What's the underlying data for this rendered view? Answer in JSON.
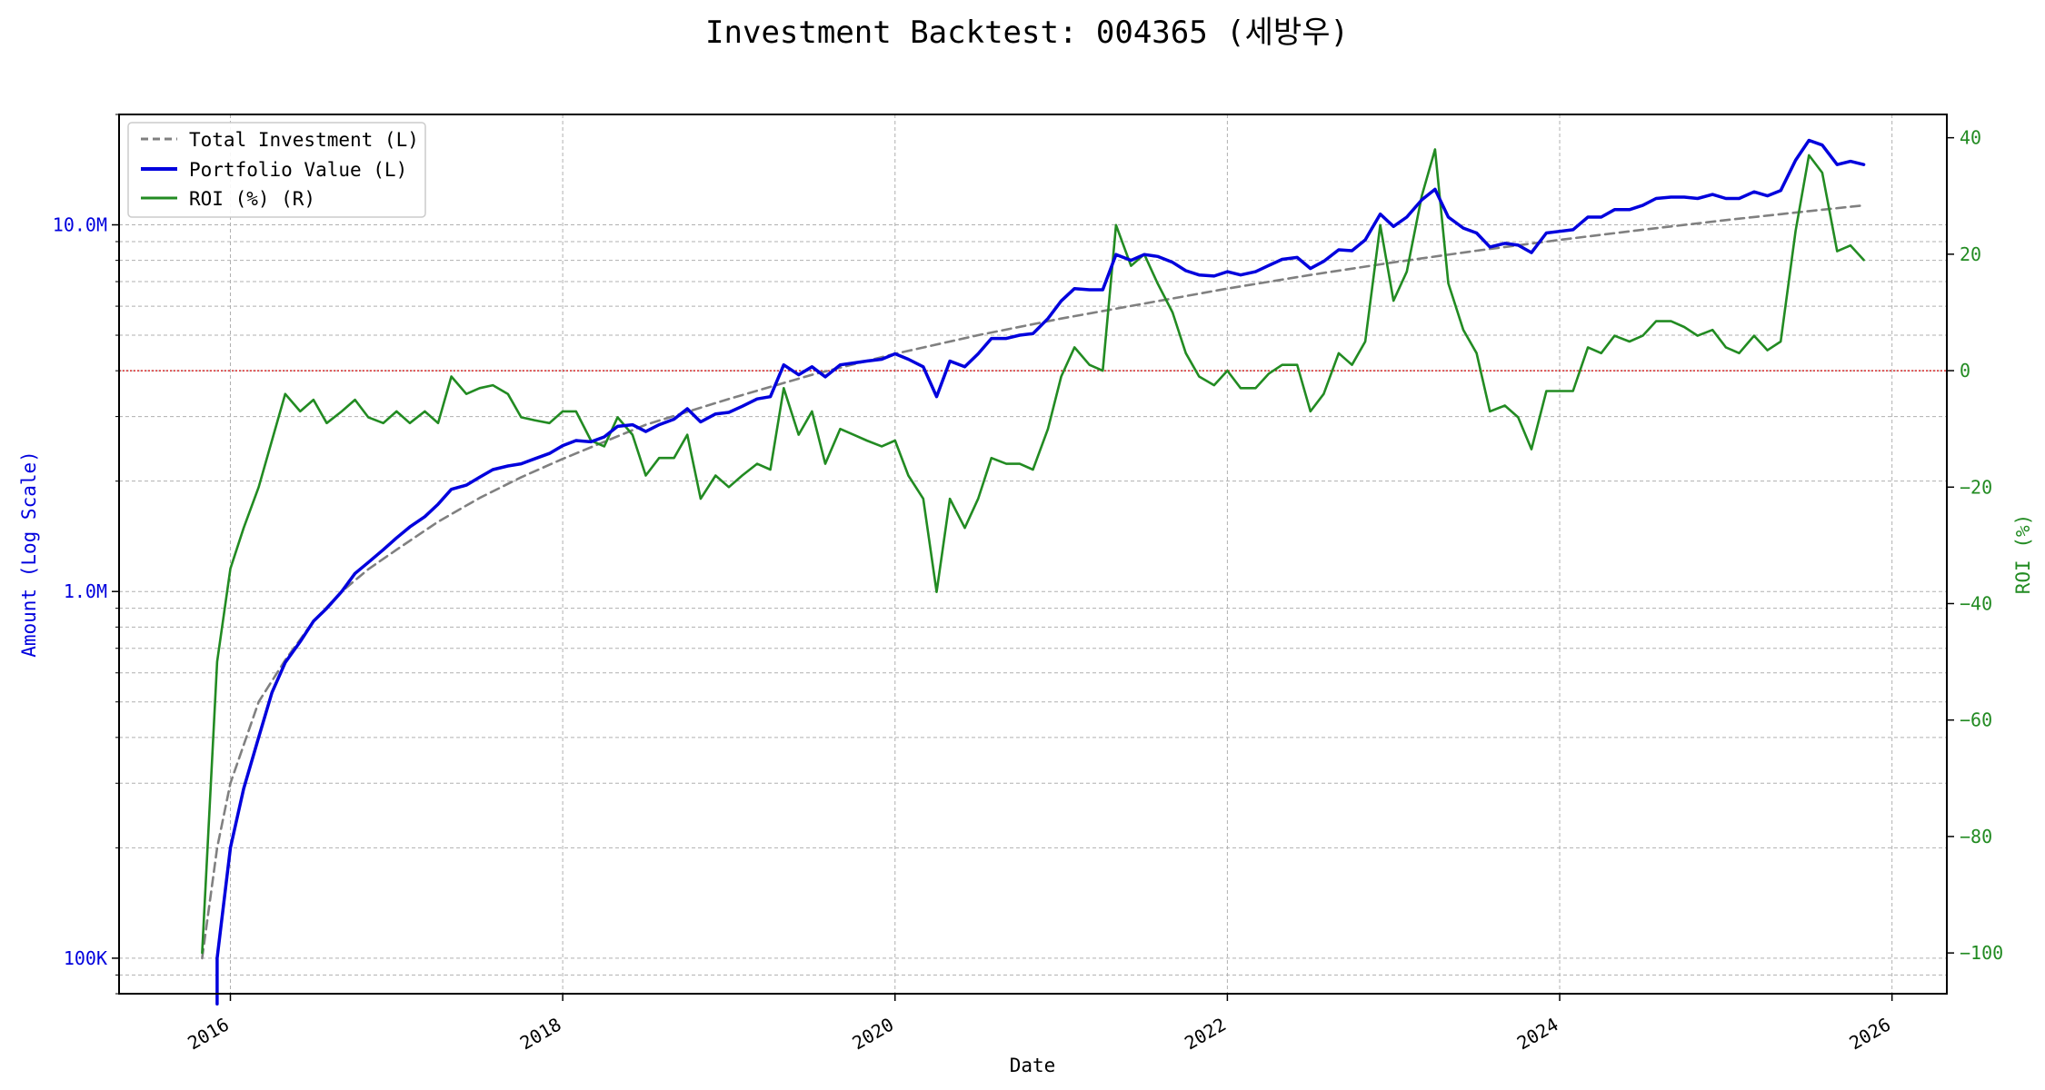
{
  "chart_data": {
    "type": "line",
    "title": "Investment Backtest: 004365 (세방우)",
    "xlabel": "Date",
    "ylabel_left": "Amount (Log Scale)",
    "ylabel_right": "ROI (%)",
    "x_ticks": [
      "2016",
      "2018",
      "2020",
      "2022",
      "2024",
      "2026"
    ],
    "y_left_ticks": [
      {
        "value": 100000,
        "label": "100K"
      },
      {
        "value": 1000000,
        "label": "1.0M"
      },
      {
        "value": 10000000,
        "label": "10.0M"
      }
    ],
    "y_right_ticks": [
      -100,
      -80,
      -60,
      -40,
      -20,
      0,
      20,
      40
    ],
    "y_left_scale": "log",
    "y_left_range": [
      80000,
      20000000
    ],
    "y_right_range": [
      -107,
      44
    ],
    "x_range": [
      2015.33,
      2026.33
    ],
    "grid": true,
    "zero_line": {
      "axis": "right",
      "value": 0,
      "color": "#d62728"
    },
    "legend_position": "top-left",
    "series": [
      {
        "name": "Total Investment (L)",
        "axis": "left",
        "color": "#808080",
        "style": "dashed",
        "points": [
          [
            2015.83,
            100000
          ],
          [
            2015.92,
            200000
          ],
          [
            2016.0,
            300000
          ],
          [
            2016.17,
            500000
          ],
          [
            2016.33,
            650000
          ],
          [
            2016.5,
            830000
          ],
          [
            2016.67,
            1000000
          ],
          [
            2016.83,
            1150000
          ],
          [
            2017.0,
            1300000
          ],
          [
            2017.25,
            1550000
          ],
          [
            2017.5,
            1800000
          ],
          [
            2017.75,
            2050000
          ],
          [
            2018.0,
            2300000
          ],
          [
            2018.5,
            2850000
          ],
          [
            2019.0,
            3350000
          ],
          [
            2019.5,
            3900000
          ],
          [
            2020.0,
            4450000
          ],
          [
            2020.5,
            5000000
          ],
          [
            2021.0,
            5550000
          ],
          [
            2021.5,
            6100000
          ],
          [
            2022.0,
            6700000
          ],
          [
            2022.5,
            7300000
          ],
          [
            2023.0,
            7900000
          ],
          [
            2023.5,
            8500000
          ],
          [
            2024.0,
            9100000
          ],
          [
            2024.5,
            9700000
          ],
          [
            2025.0,
            10300000
          ],
          [
            2025.5,
            10900000
          ],
          [
            2025.83,
            11300000
          ]
        ]
      },
      {
        "name": "Portfolio Value (L)",
        "axis": "left",
        "color": "#0000dd",
        "style": "solid",
        "points": [
          [
            2015.92,
            75000
          ],
          [
            2015.92,
            100000
          ],
          [
            2016.0,
            200000
          ],
          [
            2016.08,
            290000
          ],
          [
            2016.17,
            400000
          ],
          [
            2016.25,
            530000
          ],
          [
            2016.33,
            640000
          ],
          [
            2016.42,
            730000
          ],
          [
            2016.5,
            830000
          ],
          [
            2016.58,
            900000
          ],
          [
            2016.67,
            1000000
          ],
          [
            2016.75,
            1120000
          ],
          [
            2016.83,
            1200000
          ],
          [
            2016.92,
            1300000
          ],
          [
            2017.0,
            1400000
          ],
          [
            2017.08,
            1500000
          ],
          [
            2017.17,
            1600000
          ],
          [
            2017.25,
            1730000
          ],
          [
            2017.33,
            1900000
          ],
          [
            2017.42,
            1950000
          ],
          [
            2017.5,
            2050000
          ],
          [
            2017.58,
            2150000
          ],
          [
            2017.67,
            2200000
          ],
          [
            2017.75,
            2230000
          ],
          [
            2017.83,
            2300000
          ],
          [
            2017.92,
            2380000
          ],
          [
            2018.0,
            2500000
          ],
          [
            2018.08,
            2580000
          ],
          [
            2018.17,
            2560000
          ],
          [
            2018.25,
            2640000
          ],
          [
            2018.33,
            2820000
          ],
          [
            2018.42,
            2850000
          ],
          [
            2018.5,
            2730000
          ],
          [
            2018.58,
            2850000
          ],
          [
            2018.67,
            2950000
          ],
          [
            2018.75,
            3150000
          ],
          [
            2018.83,
            2900000
          ],
          [
            2018.92,
            3050000
          ],
          [
            2019.0,
            3080000
          ],
          [
            2019.08,
            3200000
          ],
          [
            2019.17,
            3350000
          ],
          [
            2019.25,
            3400000
          ],
          [
            2019.33,
            4150000
          ],
          [
            2019.42,
            3900000
          ],
          [
            2019.5,
            4100000
          ],
          [
            2019.58,
            3850000
          ],
          [
            2019.67,
            4150000
          ],
          [
            2019.75,
            4200000
          ],
          [
            2019.83,
            4250000
          ],
          [
            2019.92,
            4300000
          ],
          [
            2020.0,
            4450000
          ],
          [
            2020.08,
            4300000
          ],
          [
            2020.17,
            4100000
          ],
          [
            2020.25,
            3400000
          ],
          [
            2020.33,
            4250000
          ],
          [
            2020.42,
            4100000
          ],
          [
            2020.5,
            4450000
          ],
          [
            2020.58,
            4900000
          ],
          [
            2020.67,
            4900000
          ],
          [
            2020.75,
            5000000
          ],
          [
            2020.83,
            5050000
          ],
          [
            2020.92,
            5550000
          ],
          [
            2021.0,
            6200000
          ],
          [
            2021.08,
            6700000
          ],
          [
            2021.17,
            6650000
          ],
          [
            2021.25,
            6650000
          ],
          [
            2021.33,
            8300000
          ],
          [
            2021.42,
            8000000
          ],
          [
            2021.5,
            8300000
          ],
          [
            2021.58,
            8200000
          ],
          [
            2021.67,
            7900000
          ],
          [
            2021.75,
            7500000
          ],
          [
            2021.83,
            7300000
          ],
          [
            2021.92,
            7250000
          ],
          [
            2022.0,
            7450000
          ],
          [
            2022.08,
            7300000
          ],
          [
            2022.17,
            7450000
          ],
          [
            2022.25,
            7750000
          ],
          [
            2022.33,
            8050000
          ],
          [
            2022.42,
            8150000
          ],
          [
            2022.5,
            7600000
          ],
          [
            2022.58,
            7950000
          ],
          [
            2022.67,
            8550000
          ],
          [
            2022.75,
            8500000
          ],
          [
            2022.83,
            9100000
          ],
          [
            2022.92,
            10700000
          ],
          [
            2023.0,
            9900000
          ],
          [
            2023.08,
            10500000
          ],
          [
            2023.17,
            11700000
          ],
          [
            2023.25,
            12500000
          ],
          [
            2023.33,
            10500000
          ],
          [
            2023.42,
            9800000
          ],
          [
            2023.5,
            9500000
          ],
          [
            2023.58,
            8700000
          ],
          [
            2023.67,
            8900000
          ],
          [
            2023.75,
            8800000
          ],
          [
            2023.83,
            8400000
          ],
          [
            2023.92,
            9500000
          ],
          [
            2024.0,
            9600000
          ],
          [
            2024.08,
            9700000
          ],
          [
            2024.17,
            10500000
          ],
          [
            2024.25,
            10500000
          ],
          [
            2024.33,
            11000000
          ],
          [
            2024.42,
            11000000
          ],
          [
            2024.5,
            11300000
          ],
          [
            2024.58,
            11800000
          ],
          [
            2024.67,
            11900000
          ],
          [
            2024.75,
            11900000
          ],
          [
            2024.83,
            11800000
          ],
          [
            2024.92,
            12100000
          ],
          [
            2025.0,
            11800000
          ],
          [
            2025.08,
            11800000
          ],
          [
            2025.17,
            12300000
          ],
          [
            2025.25,
            12000000
          ],
          [
            2025.33,
            12400000
          ],
          [
            2025.42,
            15000000
          ],
          [
            2025.5,
            17000000
          ],
          [
            2025.58,
            16500000
          ],
          [
            2025.67,
            14600000
          ],
          [
            2025.75,
            14900000
          ],
          [
            2025.83,
            14600000
          ]
        ]
      },
      {
        "name": "ROI (%) (R)",
        "axis": "right",
        "color": "#228b22",
        "style": "solid",
        "points": [
          [
            2015.83,
            -100
          ],
          [
            2015.92,
            -50
          ],
          [
            2016.0,
            -34
          ],
          [
            2016.08,
            -27
          ],
          [
            2016.17,
            -20
          ],
          [
            2016.25,
            -12
          ],
          [
            2016.33,
            -4
          ],
          [
            2016.42,
            -7
          ],
          [
            2016.5,
            -5
          ],
          [
            2016.58,
            -9
          ],
          [
            2016.67,
            -7
          ],
          [
            2016.75,
            -5
          ],
          [
            2016.83,
            -8
          ],
          [
            2016.92,
            -9
          ],
          [
            2017.0,
            -7
          ],
          [
            2017.08,
            -9
          ],
          [
            2017.17,
            -7
          ],
          [
            2017.25,
            -9
          ],
          [
            2017.33,
            -1
          ],
          [
            2017.42,
            -4
          ],
          [
            2017.5,
            -3
          ],
          [
            2017.58,
            -2.5
          ],
          [
            2017.67,
            -4
          ],
          [
            2017.75,
            -8
          ],
          [
            2017.83,
            -8.5
          ],
          [
            2017.92,
            -9
          ],
          [
            2018.0,
            -7
          ],
          [
            2018.08,
            -7
          ],
          [
            2018.17,
            -12
          ],
          [
            2018.25,
            -13
          ],
          [
            2018.33,
            -8
          ],
          [
            2018.42,
            -11
          ],
          [
            2018.5,
            -18
          ],
          [
            2018.58,
            -15
          ],
          [
            2018.67,
            -15
          ],
          [
            2018.75,
            -11
          ],
          [
            2018.83,
            -22
          ],
          [
            2018.92,
            -18
          ],
          [
            2019.0,
            -20
          ],
          [
            2019.08,
            -18
          ],
          [
            2019.17,
            -16
          ],
          [
            2019.25,
            -17
          ],
          [
            2019.33,
            -3
          ],
          [
            2019.42,
            -11
          ],
          [
            2019.5,
            -7
          ],
          [
            2019.58,
            -16
          ],
          [
            2019.67,
            -10
          ],
          [
            2019.75,
            -11
          ],
          [
            2019.83,
            -12
          ],
          [
            2019.92,
            -13
          ],
          [
            2020.0,
            -12
          ],
          [
            2020.08,
            -18
          ],
          [
            2020.17,
            -22
          ],
          [
            2020.25,
            -38
          ],
          [
            2020.33,
            -22
          ],
          [
            2020.42,
            -27
          ],
          [
            2020.5,
            -22
          ],
          [
            2020.58,
            -15
          ],
          [
            2020.67,
            -16
          ],
          [
            2020.75,
            -16
          ],
          [
            2020.83,
            -17
          ],
          [
            2020.92,
            -10
          ],
          [
            2021.0,
            -1
          ],
          [
            2021.08,
            4
          ],
          [
            2021.17,
            1
          ],
          [
            2021.25,
            0
          ],
          [
            2021.33,
            25
          ],
          [
            2021.42,
            18
          ],
          [
            2021.5,
            20
          ],
          [
            2021.58,
            15
          ],
          [
            2021.67,
            10
          ],
          [
            2021.75,
            3
          ],
          [
            2021.83,
            -1
          ],
          [
            2021.92,
            -2.5
          ],
          [
            2022.0,
            0
          ],
          [
            2022.08,
            -3
          ],
          [
            2022.17,
            -3
          ],
          [
            2022.25,
            -0.5
          ],
          [
            2022.33,
            1
          ],
          [
            2022.42,
            1
          ],
          [
            2022.5,
            -7
          ],
          [
            2022.58,
            -4
          ],
          [
            2022.67,
            3
          ],
          [
            2022.75,
            1
          ],
          [
            2022.83,
            5
          ],
          [
            2022.92,
            25
          ],
          [
            2023.0,
            12
          ],
          [
            2023.08,
            17
          ],
          [
            2023.17,
            30
          ],
          [
            2023.25,
            38
          ],
          [
            2023.33,
            15
          ],
          [
            2023.42,
            7
          ],
          [
            2023.5,
            3
          ],
          [
            2023.58,
            -7
          ],
          [
            2023.67,
            -6
          ],
          [
            2023.75,
            -8
          ],
          [
            2023.83,
            -13.5
          ],
          [
            2023.92,
            -3.5
          ],
          [
            2024.0,
            -3.5
          ],
          [
            2024.08,
            -3.5
          ],
          [
            2024.17,
            4
          ],
          [
            2024.25,
            3
          ],
          [
            2024.33,
            6
          ],
          [
            2024.42,
            5
          ],
          [
            2024.5,
            6
          ],
          [
            2024.58,
            8.5
          ],
          [
            2024.67,
            8.5
          ],
          [
            2024.75,
            7.5
          ],
          [
            2024.83,
            6
          ],
          [
            2024.92,
            7
          ],
          [
            2025.0,
            4
          ],
          [
            2025.08,
            3
          ],
          [
            2025.17,
            6
          ],
          [
            2025.25,
            3.5
          ],
          [
            2025.33,
            5
          ],
          [
            2025.42,
            24
          ],
          [
            2025.5,
            37
          ],
          [
            2025.58,
            34
          ],
          [
            2025.67,
            20.5
          ],
          [
            2025.75,
            21.5
          ],
          [
            2025.83,
            19
          ]
        ]
      }
    ]
  }
}
